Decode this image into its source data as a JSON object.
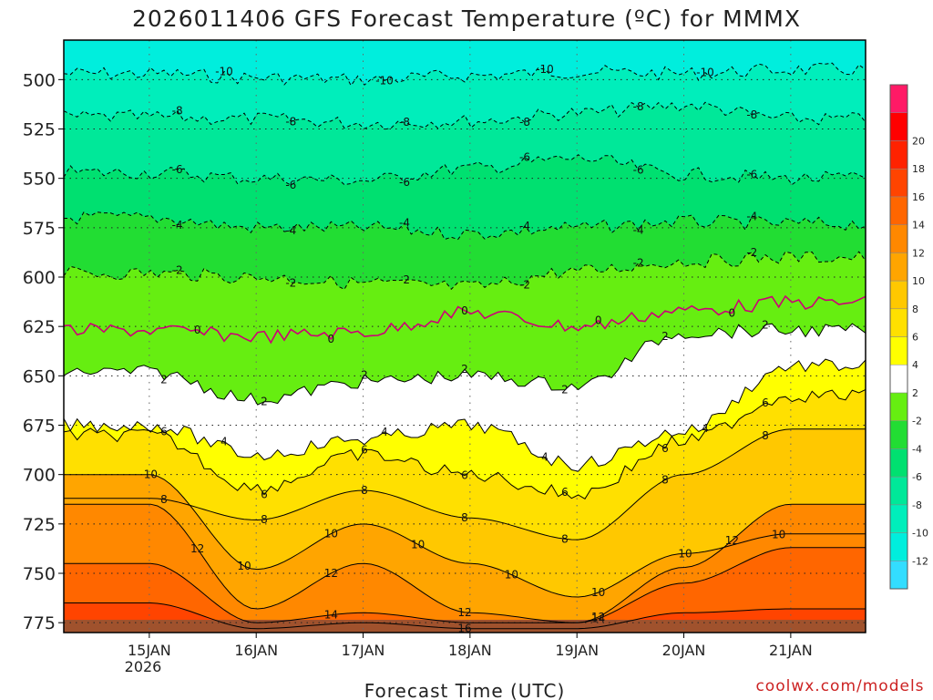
{
  "chart_data": {
    "type": "heatmap",
    "title": "2026011406 GFS Forecast Temperature (ºC) for MMMX",
    "xlabel": "Forecast Time (UTC)",
    "ylabel": "",
    "credit": "coolwx.com/models",
    "x_tick_labels": [
      "15JAN",
      "16JAN",
      "17JAN",
      "18JAN",
      "19JAN",
      "20JAN",
      "21JAN"
    ],
    "x_year_label": "2026",
    "x_days": [
      0.8,
      1.8,
      2.8,
      3.8,
      4.8,
      5.8,
      6.8
    ],
    "xlim": [
      0.0,
      7.5
    ],
    "y_ticks": [
      500,
      525,
      550,
      575,
      600,
      625,
      650,
      675,
      700,
      725,
      750,
      775
    ],
    "ylim": [
      480,
      780
    ],
    "grid": true,
    "colorbar": {
      "levels": [
        -14,
        -12,
        -10,
        -8,
        -6,
        -4,
        -2,
        2,
        4,
        6,
        8,
        10,
        12,
        14,
        16,
        18,
        20,
        22
      ],
      "tick_labels": [
        "-12",
        "-10",
        "-8",
        "-6",
        "-4",
        "-2",
        "2",
        "4",
        "6",
        "8",
        "10",
        "12",
        "14",
        "16",
        "18",
        "20"
      ],
      "colors": [
        "#33ddff",
        "#00eedd",
        "#00eebb",
        "#00e899",
        "#00e070",
        "#22dd33",
        "#66ee11",
        "#ffffff",
        "#ffff00",
        "#ffe000",
        "#ffc800",
        "#ffa500",
        "#ff8800",
        "#ff6600",
        "#ff4400",
        "#ff2200",
        "#ff0000",
        "#ff1a66"
      ]
    },
    "isotherms": [
      {
        "temp": -10,
        "label": "-10",
        "pressure": [
          497,
          499,
          500,
          498,
          496,
          497,
          495
        ]
      },
      {
        "temp": -8,
        "label": "-8",
        "pressure": [
          519,
          520,
          522,
          521,
          517,
          513,
          520
        ]
      },
      {
        "temp": -6,
        "label": "-6",
        "pressure": [
          547,
          550,
          551,
          545,
          540,
          548,
          550
        ]
      },
      {
        "temp": -4,
        "label": "-4",
        "pressure": [
          570,
          575,
          575,
          578,
          575,
          572,
          573
        ]
      },
      {
        "temp": -2,
        "label": "-2",
        "pressure": [
          598,
          600,
          603,
          605,
          597,
          592,
          590
        ]
      },
      {
        "temp": 0,
        "label": "0",
        "pressure": [
          627,
          630,
          628,
          618,
          625,
          617,
          613
        ]
      },
      {
        "temp": 2,
        "label": "2",
        "pressure": [
          648,
          662,
          653,
          650,
          655,
          628,
          627
        ]
      },
      {
        "temp": 4,
        "label": "4",
        "pressure": [
          675,
          690,
          682,
          675,
          695,
          678,
          645
        ]
      },
      {
        "temp": 6,
        "label": "6",
        "pressure": [
          680,
          707,
          690,
          700,
          710,
          683,
          660
        ]
      },
      {
        "temp": 8,
        "label": "8",
        "pressure": [
          712,
          723,
          708,
          722,
          733,
          700,
          677
        ]
      },
      {
        "temp": 10,
        "label": "10",
        "pressure": [
          700,
          748,
          725,
          745,
          762,
          740,
          730
        ]
      },
      {
        "temp": 12,
        "label": "12",
        "pressure": [
          715,
          768,
          745,
          770,
          775,
          747,
          715
        ]
      },
      {
        "temp": 14,
        "label": "14",
        "pressure": [
          745,
          775,
          770,
          775,
          775,
          755,
          737
        ]
      },
      {
        "temp": 16,
        "label": "16",
        "pressure": [
          765,
          778,
          775,
          778,
          778,
          770,
          768
        ]
      }
    ],
    "contour_labels": [
      "-10",
      "-10",
      "-10",
      "-10",
      "-8",
      "-8",
      "-8",
      "-8",
      "-8",
      "-8",
      "-6",
      "-6",
      "-6",
      "-6",
      "-6",
      "-6",
      "-4",
      "-4",
      "-4",
      "-4",
      "-4",
      "-4",
      "-2",
      "-2",
      "-2",
      "-2",
      "-2",
      "-2",
      "0",
      "0",
      "0",
      "0",
      "0",
      "2",
      "2",
      "2",
      "2",
      "2",
      "2",
      "2",
      "4",
      "4",
      "4",
      "4",
      "6",
      "6",
      "6",
      "6",
      "6",
      "6",
      "6",
      "8",
      "8",
      "8",
      "8",
      "8",
      "8",
      "8",
      "10",
      "10",
      "10",
      "10",
      "10",
      "10",
      "10",
      "10",
      "12",
      "12",
      "12",
      "12",
      "12",
      "14",
      "14",
      "16"
    ]
  }
}
